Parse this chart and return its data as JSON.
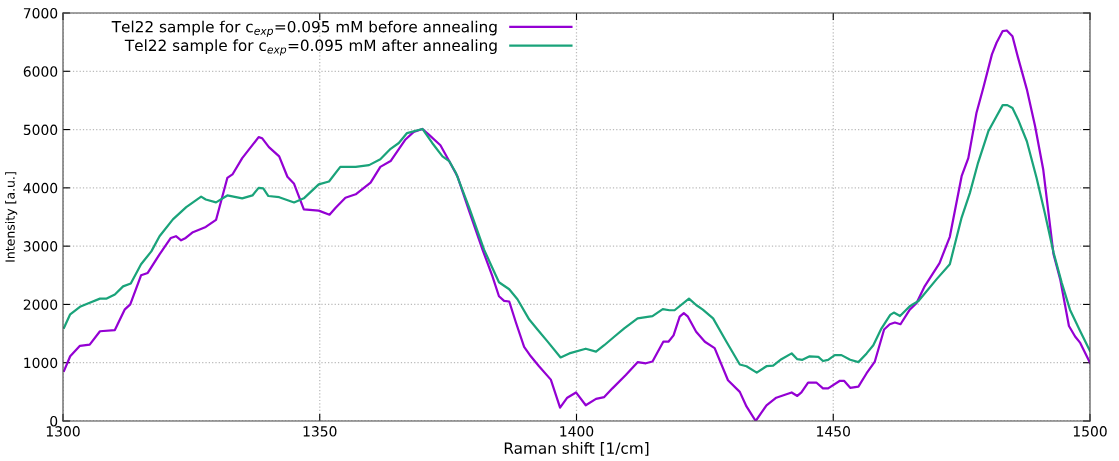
{
  "chart_data": {
    "type": "line",
    "xlabel": "Raman shift [1/cm]",
    "ylabel": "Intensity [a.u.]",
    "xlim": [
      1300,
      1500
    ],
    "xticks": [
      1300,
      1350,
      1400,
      1450,
      1500
    ],
    "ylim": [
      0,
      7000
    ],
    "yticks": [
      0,
      1000,
      2000,
      3000,
      4000,
      5000,
      6000,
      7000
    ],
    "grid": true,
    "legend": "top left",
    "marker": "none",
    "line_style": "solid",
    "series": [
      {
        "name": "Tel22 sample for c$_{exp}$=0.095 mM before annealing",
        "color": "#9400d3",
        "x": [
          1300.2,
          1301.4,
          1303.3,
          1305.2,
          1307.2,
          1310.1,
          1312,
          1313.1,
          1315.2,
          1316.5,
          1318.8,
          1321,
          1322,
          1323,
          1323.9,
          1325.3,
          1327.8,
          1329.8,
          1332,
          1333,
          1334.9,
          1338.1,
          1338.8,
          1340.1,
          1342.1,
          1343.7,
          1345,
          1346.9,
          1349.8,
          1351.9,
          1353.1,
          1355,
          1357,
          1359.9,
          1361.8,
          1363.8,
          1366.7,
          1368.3,
          1370,
          1371.3,
          1373.5,
          1375.2,
          1376.8,
          1379.1,
          1381.7,
          1383.6,
          1384.9,
          1385.9,
          1386.9,
          1388.2,
          1389.8,
          1391.1,
          1392.7,
          1395,
          1396.8,
          1398.2,
          1399.9,
          1401.8,
          1403.8,
          1405.4,
          1407,
          1409.6,
          1411.9,
          1413.5,
          1414.8,
          1416.9,
          1417.9,
          1418.9,
          1420.1,
          1420.9,
          1421.7,
          1423.3,
          1425,
          1426.9,
          1429.5,
          1431.8,
          1433.1,
          1434.9,
          1437,
          1438.9,
          1440.6,
          1441.9,
          1443,
          1443.8,
          1445.1,
          1446.7,
          1448,
          1449,
          1451.3,
          1452.1,
          1453.3,
          1454.9,
          1456.5,
          1458.1,
          1459.9,
          1461,
          1462,
          1463.1,
          1464.9,
          1466.2,
          1467.8,
          1470.7,
          1472.7,
          1475,
          1476.3,
          1477.9,
          1479.2,
          1480.9,
          1481.8,
          1483,
          1483.8,
          1484.9,
          1486,
          1487.7,
          1489.3,
          1490.9,
          1492.9,
          1494.2,
          1495.9,
          1497.1,
          1498.1,
          1500
        ],
        "values": [
          860,
          1110,
          1290,
          1310,
          1540,
          1560,
          1910,
          2000,
          2500,
          2540,
          2860,
          3140,
          3170,
          3100,
          3140,
          3240,
          3330,
          3450,
          4170,
          4230,
          4510,
          4870,
          4850,
          4700,
          4540,
          4190,
          4070,
          3630,
          3610,
          3540,
          3660,
          3830,
          3890,
          4090,
          4360,
          4460,
          4830,
          4960,
          5010,
          4910,
          4730,
          4460,
          4200,
          3600,
          2940,
          2490,
          2140,
          2060,
          2050,
          1690,
          1270,
          1110,
          940,
          710,
          230,
          400,
          490,
          270,
          380,
          410,
          560,
          790,
          1010,
          990,
          1020,
          1360,
          1360,
          1470,
          1790,
          1850,
          1790,
          1530,
          1360,
          1250,
          700,
          500,
          250,
          0,
          270,
          400,
          450,
          490,
          430,
          490,
          660,
          660,
          560,
          560,
          690,
          690,
          570,
          590,
          820,
          1020,
          1570,
          1660,
          1690,
          1660,
          1910,
          2020,
          2310,
          2710,
          3160,
          4200,
          4510,
          5290,
          5710,
          6290,
          6490,
          6690,
          6700,
          6600,
          6230,
          5690,
          5060,
          4310,
          2860,
          2430,
          1630,
          1450,
          1340,
          1000
        ]
      },
      {
        "name": "Tel22 sample for c$_{exp}$=0.095 mM after annealing",
        "color": "#1aa37a",
        "x": [
          1300.2,
          1301.4,
          1303.3,
          1305.2,
          1307.2,
          1308.5,
          1310.1,
          1311.7,
          1313.2,
          1315.2,
          1317.2,
          1318.8,
          1321.4,
          1324,
          1326.9,
          1327.8,
          1329.8,
          1332,
          1334.9,
          1336.9,
          1338.1,
          1339,
          1340,
          1342.1,
          1345,
          1346.9,
          1349.8,
          1351.8,
          1354,
          1357,
          1359.6,
          1361.8,
          1363.8,
          1365.4,
          1367,
          1370,
          1371.9,
          1373.9,
          1375.2,
          1376.5,
          1379.1,
          1382,
          1383.6,
          1384.9,
          1386.9,
          1388.5,
          1390.8,
          1392.4,
          1394.3,
          1396.9,
          1398.6,
          1401.8,
          1403.8,
          1405.4,
          1407.4,
          1409.3,
          1411.9,
          1414.8,
          1416.8,
          1418.1,
          1419.1,
          1421.9,
          1423.3,
          1424.6,
          1426.6,
          1429.2,
          1431.8,
          1433.1,
          1435.1,
          1437,
          1438.3,
          1439.9,
          1441.9,
          1443,
          1444,
          1445.4,
          1447.1,
          1448,
          1449,
          1450.3,
          1451.6,
          1453.3,
          1454.9,
          1456.5,
          1457.8,
          1459.4,
          1461.1,
          1461.8,
          1463,
          1464.9,
          1466.6,
          1470.1,
          1472.7,
          1475,
          1476.6,
          1478.2,
          1480.2,
          1481.8,
          1483,
          1483.9,
          1484.9,
          1486,
          1487.7,
          1489.6,
          1491.2,
          1492.9,
          1494.5,
          1496.1,
          1498.1,
          1500
        ],
        "values": [
          1600,
          1830,
          1960,
          2030,
          2100,
          2100,
          2170,
          2310,
          2360,
          2690,
          2910,
          3170,
          3460,
          3670,
          3850,
          3800,
          3750,
          3870,
          3820,
          3870,
          4000,
          3990,
          3860,
          3840,
          3750,
          3820,
          4060,
          4110,
          4360,
          4360,
          4390,
          4490,
          4670,
          4770,
          4940,
          5010,
          4770,
          4540,
          4460,
          4260,
          3660,
          2940,
          2630,
          2380,
          2260,
          2090,
          1740,
          1570,
          1370,
          1090,
          1160,
          1240,
          1190,
          1300,
          1450,
          1590,
          1760,
          1800,
          1920,
          1900,
          1900,
          2100,
          1990,
          1910,
          1760,
          1360,
          970,
          940,
          830,
          940,
          950,
          1060,
          1160,
          1060,
          1050,
          1110,
          1100,
          1030,
          1050,
          1130,
          1130,
          1050,
          1010,
          1160,
          1300,
          1590,
          1820,
          1860,
          1800,
          1970,
          2060,
          2430,
          2690,
          3490,
          3910,
          4430,
          4970,
          5230,
          5420,
          5420,
          5370,
          5170,
          4800,
          4170,
          3570,
          2890,
          2370,
          1910,
          1540,
          1200
        ]
      }
    ]
  }
}
